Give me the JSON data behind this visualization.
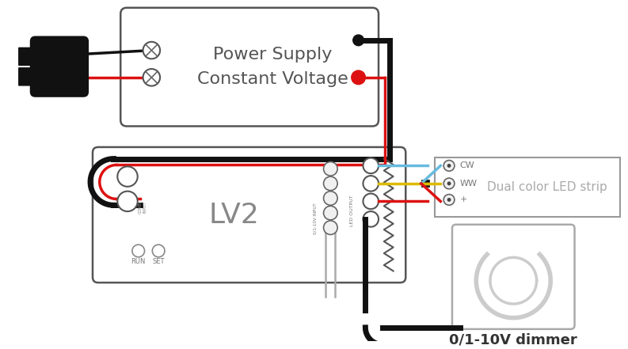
{
  "bg_color": "#ffffff",
  "plug_color": "#111111",
  "wire_black": "#111111",
  "wire_red": "#dd1111",
  "wire_blue": "#66bbdd",
  "wire_yellow": "#ddbb00",
  "wire_gray": "#aaaaaa",
  "box_edge": "#555555",
  "text_color": "#555555",
  "ps_text1": "Power Supply",
  "ps_text2": "Constant Voltage",
  "lv2_label": "LV2",
  "led_label": "Dual color LED strip",
  "dimmer_label": "0/1-10V dimmer",
  "run_label": "RUN",
  "set_label": "SET",
  "cw_label": "CW",
  "ww_label": "WW",
  "plus_label": "+"
}
